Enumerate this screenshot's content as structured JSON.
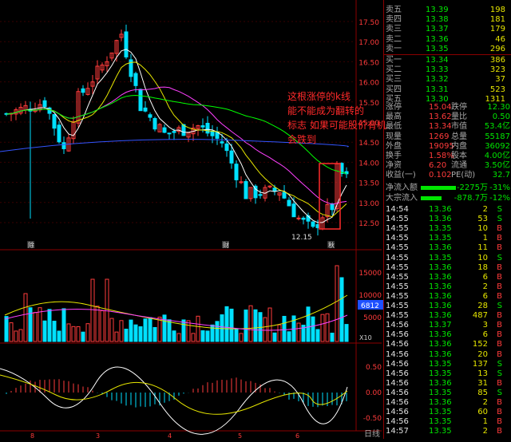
{
  "price_axis": [
    "17.50",
    "17.00",
    "16.50",
    "16.00",
    "15.50",
    "15.00",
    "14.50",
    "14.00",
    "13.50",
    "13.00",
    "12.50"
  ],
  "vol_axis": [
    "15000",
    "10000",
    "5000"
  ],
  "vol_badge": "6812",
  "vol_unit": "X10",
  "macd_axis": [
    "0.50",
    "0.00",
    "-0.50"
  ],
  "low_label": "12.15",
  "bottom_marks": [
    "8",
    "3",
    "4",
    "5",
    "6"
  ],
  "chart_markers": [
    "除",
    "财",
    "秋"
  ],
  "annotation": [
    "这根涨停的k线",
    "能不能成为翻转的",
    "标志 如果可能股价有机",
    "会跌到"
  ],
  "order_book": [
    {
      "label": "卖五",
      "price": "13.39",
      "vol": "198"
    },
    {
      "label": "卖四",
      "price": "13.38",
      "vol": "181"
    },
    {
      "label": "卖三",
      "price": "13.37",
      "vol": "179"
    },
    {
      "label": "卖二",
      "price": "13.36",
      "vol": "46"
    },
    {
      "label": "卖一",
      "price": "13.35",
      "vol": "296"
    },
    {
      "label": "买一",
      "price": "13.34",
      "vol": "386"
    },
    {
      "label": "买二",
      "price": "13.33",
      "vol": "323"
    },
    {
      "label": "买三",
      "price": "13.32",
      "vol": "37"
    },
    {
      "label": "买四",
      "price": "13.31",
      "vol": "523"
    },
    {
      "label": "买五",
      "price": "13.30",
      "vol": "1311"
    }
  ],
  "stats": [
    {
      "l1": "涨停",
      "v1": "15.04",
      "l2": "跌停",
      "v2": "12.30"
    },
    {
      "l1": "最高",
      "v1": "13.62",
      "l2": "量比",
      "v2": "0.50"
    },
    {
      "l1": "最低",
      "v1": "13.34",
      "l2": "市值",
      "v2": "53.4亿"
    },
    {
      "l1": "现量",
      "v1": "1269",
      "l2": "总量",
      "v2": "55187"
    },
    {
      "l1": "外盘",
      "v1": "19095",
      "l2": "内盘",
      "v2": "36092"
    },
    {
      "l1": "换手",
      "v1": "1.58%",
      "l2": "股本",
      "v2": "4.00亿"
    },
    {
      "l1": "净资",
      "v1": "6.20",
      "l2": "流通",
      "v2": "3.50亿"
    },
    {
      "l1": "收益(一)",
      "v1": "0.102",
      "l2": "PE(动)",
      "v2": "32.7"
    }
  ],
  "flows": [
    {
      "label": "净流入额",
      "value": "-2275万",
      "pct": "-31%"
    },
    {
      "label": "大宗流入",
      "value": "-878.7万",
      "pct": "-12%"
    }
  ],
  "ticks": [
    {
      "t": "14:54",
      "p": "13.36",
      "v": "2",
      "d": "S"
    },
    {
      "t": "14:55",
      "p": "13.36",
      "v": "53",
      "d": "S"
    },
    {
      "t": "14:55",
      "p": "13.35",
      "v": "10",
      "d": "B"
    },
    {
      "t": "14:55",
      "p": "13.35",
      "v": "1",
      "d": "B"
    },
    {
      "t": "14:55",
      "p": "13.36",
      "v": "11",
      "d": "B"
    },
    {
      "t": "14:55",
      "p": "13.35",
      "v": "10",
      "d": "S"
    },
    {
      "t": "14:55",
      "p": "13.36",
      "v": "18",
      "d": "B"
    },
    {
      "t": "14:55",
      "p": "13.36",
      "v": "6",
      "d": "B"
    },
    {
      "t": "14:55",
      "p": "13.36",
      "v": "2",
      "d": "B"
    },
    {
      "t": "14:55",
      "p": "13.36",
      "v": "6",
      "d": "B"
    },
    {
      "t": "14:55",
      "p": "13.36",
      "v": "28",
      "d": "S"
    },
    {
      "t": "14:55",
      "p": "13.36",
      "v": "487",
      "d": "B"
    },
    {
      "t": "14:56",
      "p": "13.37",
      "v": "3",
      "d": "B"
    },
    {
      "t": "14:56",
      "p": "13.36",
      "v": "6",
      "d": "B"
    },
    {
      "t": "14:56",
      "p": "13.36",
      "v": "152",
      "d": "B"
    },
    {
      "t": "14:56",
      "p": "13.36",
      "v": "20",
      "d": "B"
    },
    {
      "t": "14:56",
      "p": "13.35",
      "v": "137",
      "d": "S"
    },
    {
      "t": "14:56",
      "p": "13.35",
      "v": "13",
      "d": "S"
    },
    {
      "t": "14:56",
      "p": "13.36",
      "v": "31",
      "d": "B"
    },
    {
      "t": "14:56",
      "p": "13.35",
      "v": "85",
      "d": "S"
    },
    {
      "t": "14:56",
      "p": "13.36",
      "v": "2",
      "d": "B"
    },
    {
      "t": "14:56",
      "p": "13.35",
      "v": "60",
      "d": "B"
    },
    {
      "t": "14:56",
      "p": "13.35",
      "v": "1",
      "d": "B"
    },
    {
      "t": "14:57",
      "p": "13.35",
      "v": "2",
      "d": "B"
    }
  ],
  "bottom_label": "日线",
  "colors": {
    "up": "#ff3b3b",
    "down": "#00e0ff",
    "ma5": "#ffffff",
    "ma10": "#e6e600",
    "ma20": "#ff40ff",
    "ma60": "#00ff00",
    "ma120": "#3355ff"
  }
}
